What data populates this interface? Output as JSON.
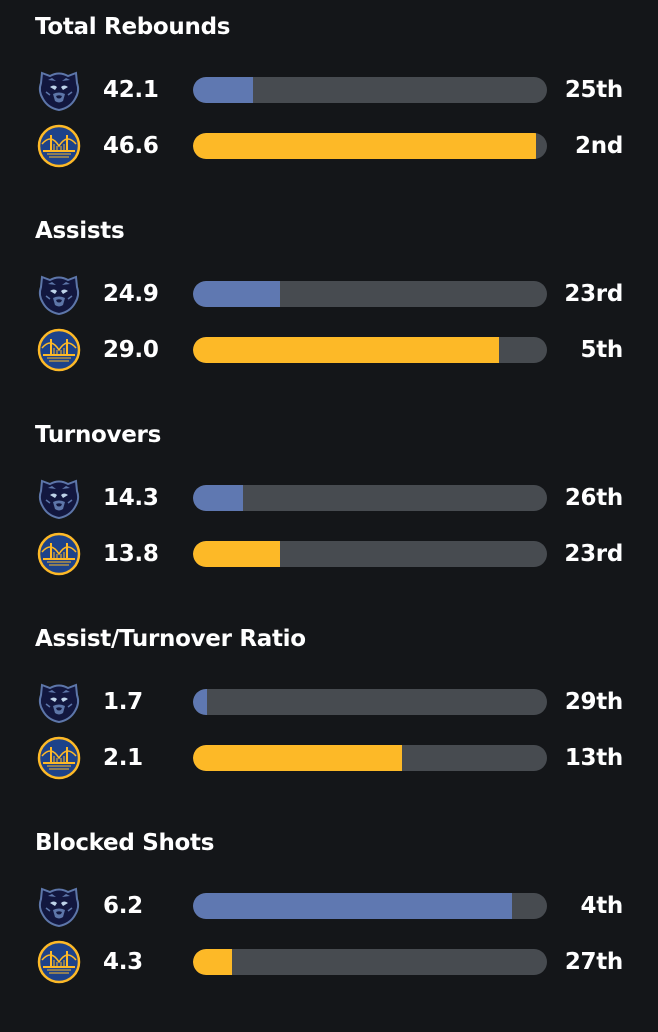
{
  "colors": {
    "grizzlies_bar": "#5f78b1",
    "warriors_bar": "#fdb927",
    "track": "#474b50"
  },
  "teams": [
    {
      "key": "grizzlies",
      "icon": "grizzlies-logo-icon"
    },
    {
      "key": "warriors",
      "icon": "warriors-logo-icon"
    }
  ],
  "sections": [
    {
      "title": "Total Rebounds",
      "rows": [
        {
          "team": "grizzlies",
          "value": "42.1",
          "rank": "25th",
          "fill": 0.17
        },
        {
          "team": "warriors",
          "value": "46.6",
          "rank": "2nd",
          "fill": 0.97
        }
      ]
    },
    {
      "title": "Assists",
      "rows": [
        {
          "team": "grizzlies",
          "value": "24.9",
          "rank": "23rd",
          "fill": 0.245
        },
        {
          "team": "warriors",
          "value": "29.0",
          "rank": "5th",
          "fill": 0.865
        }
      ]
    },
    {
      "title": "Turnovers",
      "rows": [
        {
          "team": "grizzlies",
          "value": "14.3",
          "rank": "26th",
          "fill": 0.14
        },
        {
          "team": "warriors",
          "value": "13.8",
          "rank": "23rd",
          "fill": 0.245
        }
      ]
    },
    {
      "title": "Assist/Turnover Ratio",
      "rows": [
        {
          "team": "grizzlies",
          "value": "1.7",
          "rank": "29th",
          "fill": 0.04
        },
        {
          "team": "warriors",
          "value": "2.1",
          "rank": "13th",
          "fill": 0.59
        }
      ]
    },
    {
      "title": "Blocked Shots",
      "rows": [
        {
          "team": "grizzlies",
          "value": "6.2",
          "rank": "4th",
          "fill": 0.9
        },
        {
          "team": "warriors",
          "value": "4.3",
          "rank": "27th",
          "fill": 0.11
        }
      ]
    }
  ]
}
